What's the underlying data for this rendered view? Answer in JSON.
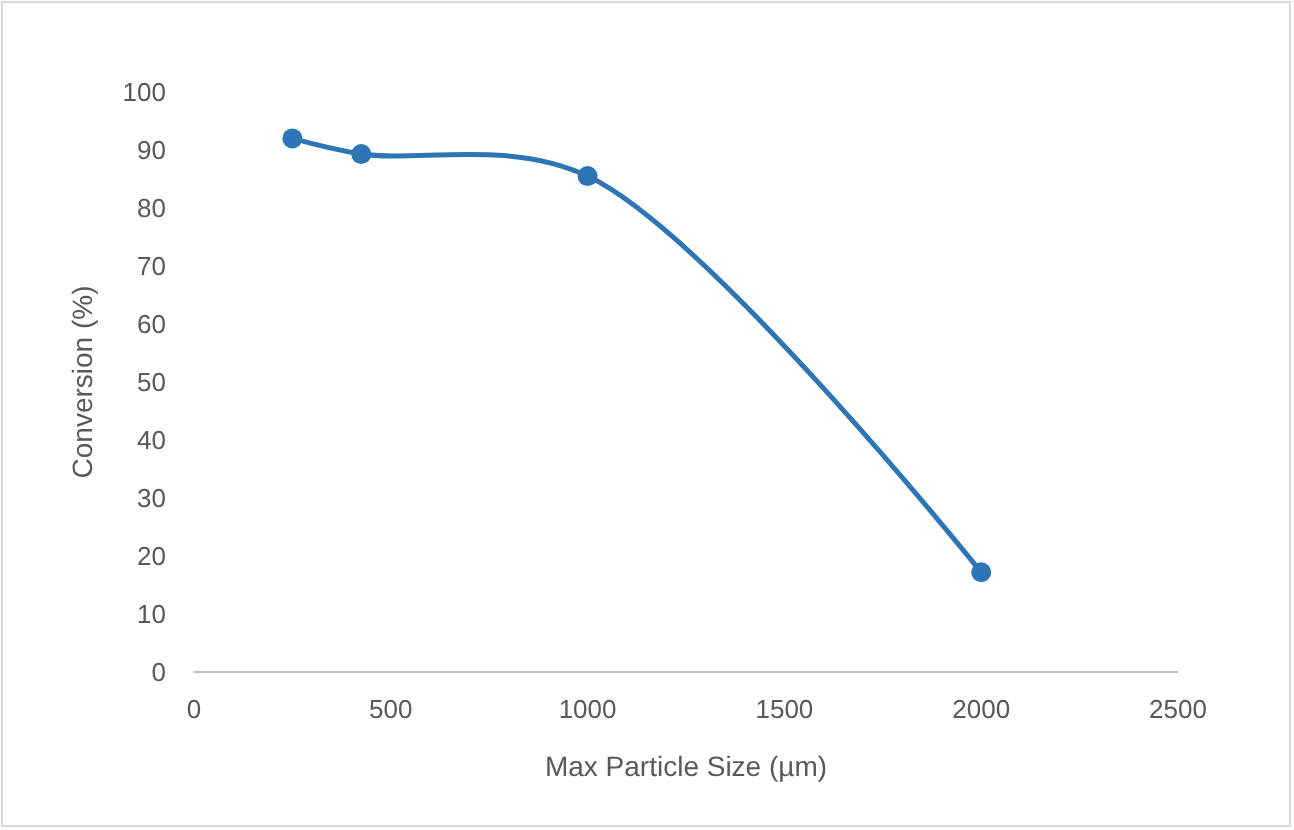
{
  "chart_data": {
    "type": "line",
    "xlabel": "Max Particle Size (µm)",
    "ylabel": "Conversion (%)",
    "x": [
      250,
      425,
      1000,
      2000
    ],
    "series": [
      {
        "color": "#2e75b6",
        "values": [
          92,
          89.3,
          85.5,
          17.2
        ]
      }
    ],
    "xlim": [
      0,
      2500
    ],
    "xticks": [
      0,
      500,
      1000,
      1500,
      2000,
      2500
    ],
    "ylim": [
      0,
      100
    ],
    "yticks": [
      0,
      10,
      20,
      30,
      40,
      50,
      60,
      70,
      80,
      90,
      100
    ],
    "marker": "circle",
    "line_style": "solid",
    "grid": false
  }
}
